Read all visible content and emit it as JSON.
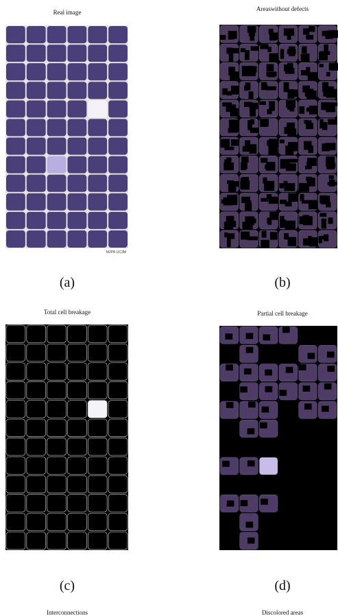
{
  "figure": {
    "panels": [
      {
        "title": "Real image",
        "label": "(a)"
      },
      {
        "title": "Areaswithout defects",
        "label": "(b)"
      },
      {
        "title": "Total cell breakage",
        "label": "(c)"
      },
      {
        "title": "Partial cell breakage",
        "label": "(d)"
      }
    ],
    "watermark": "MJPR UC3M",
    "bottom_titles": [
      "Interconnections",
      "Discolored areas"
    ]
  }
}
